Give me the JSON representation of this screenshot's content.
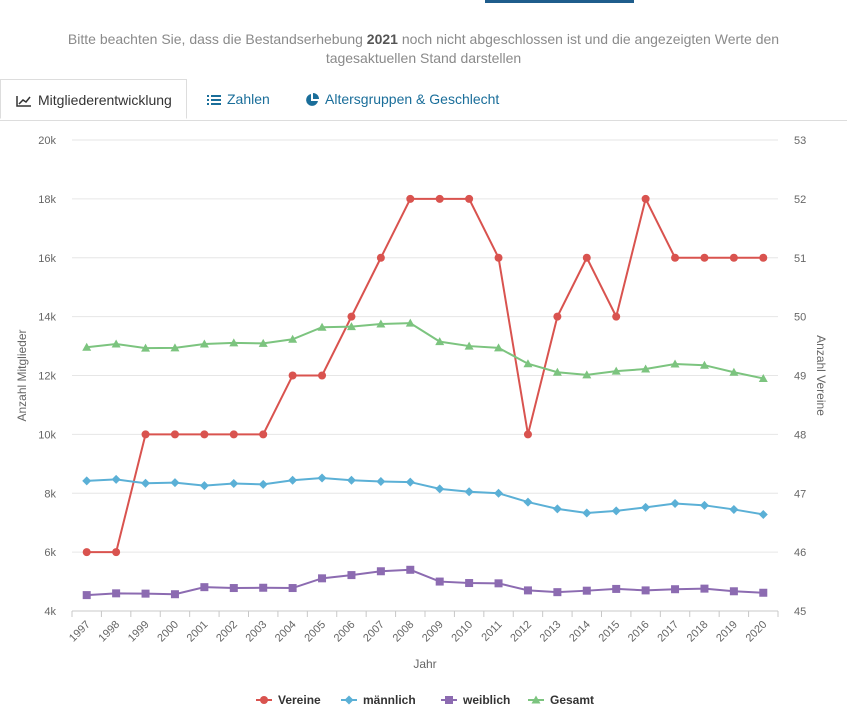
{
  "notice": {
    "text_before": "Bitte beachten Sie, dass die Bestandserhebung ",
    "year": "2021",
    "text_after": " noch nicht abgeschlossen ist und die angezeigten Werte den tagesaktuellen Stand darstellen"
  },
  "tabs": [
    {
      "label": "Mitgliederentwicklung",
      "icon": "line-chart-icon",
      "active": true
    },
    {
      "label": "Zahlen",
      "icon": "list-icon",
      "active": false
    },
    {
      "label": "Altersgruppen & Geschlecht",
      "icon": "pie-chart-icon",
      "active": false
    }
  ],
  "chart_data": {
    "type": "line",
    "xlabel": "Jahr",
    "ylabel_left": "Anzahl Mitglieder",
    "ylabel_right": "Anzahl Vereine",
    "ylim_left": [
      4000,
      20000
    ],
    "ylim_right": [
      45,
      53
    ],
    "yticks_left": [
      "4k",
      "6k",
      "8k",
      "10k",
      "12k",
      "14k",
      "16k",
      "18k",
      "20k"
    ],
    "yticks_right": [
      "45",
      "46",
      "47",
      "48",
      "49",
      "50",
      "51",
      "52",
      "53"
    ],
    "grid": true,
    "legend_position": "bottom",
    "categories": [
      "1997",
      "1998",
      "1999",
      "2000",
      "2001",
      "2002",
      "2003",
      "2004",
      "2005",
      "2006",
      "2007",
      "2008",
      "2009",
      "2010",
      "2011",
      "2012",
      "2013",
      "2014",
      "2015",
      "2016",
      "2017",
      "2018",
      "2019",
      "2020"
    ],
    "series": [
      {
        "name": "Vereine",
        "axis": "right",
        "color": "#d9534f",
        "marker": "circle",
        "values": [
          46,
          46,
          48,
          48,
          48,
          48,
          48,
          49,
          49,
          50,
          51,
          52,
          52,
          52,
          51,
          48,
          50,
          51,
          50,
          52,
          51,
          51,
          51,
          51
        ]
      },
      {
        "name": "männlich",
        "axis": "left",
        "color": "#5bb0d6",
        "marker": "diamond",
        "values": [
          8420,
          8470,
          8340,
          8360,
          8260,
          8330,
          8300,
          8440,
          8520,
          8440,
          8400,
          8380,
          8150,
          8050,
          8000,
          7700,
          7470,
          7330,
          7400,
          7520,
          7650,
          7590,
          7450,
          7280
        ]
      },
      {
        "name": "weiblich",
        "axis": "left",
        "color": "#8c6bb1",
        "marker": "square",
        "values": [
          4540,
          4600,
          4590,
          4570,
          4810,
          4780,
          4790,
          4780,
          5110,
          5220,
          5350,
          5400,
          5000,
          4950,
          4940,
          4700,
          4640,
          4690,
          4750,
          4700,
          4740,
          4760,
          4670,
          4620
        ]
      },
      {
        "name": "Gesamt",
        "axis": "left",
        "color": "#7cc47f",
        "marker": "triangle",
        "values": [
          12960,
          13070,
          12930,
          12940,
          13070,
          13110,
          13090,
          13230,
          13640,
          13660,
          13750,
          13780,
          13150,
          13000,
          12940,
          12400,
          12110,
          12020,
          12150,
          12220,
          12390,
          12350,
          12110,
          11900
        ]
      }
    ]
  }
}
